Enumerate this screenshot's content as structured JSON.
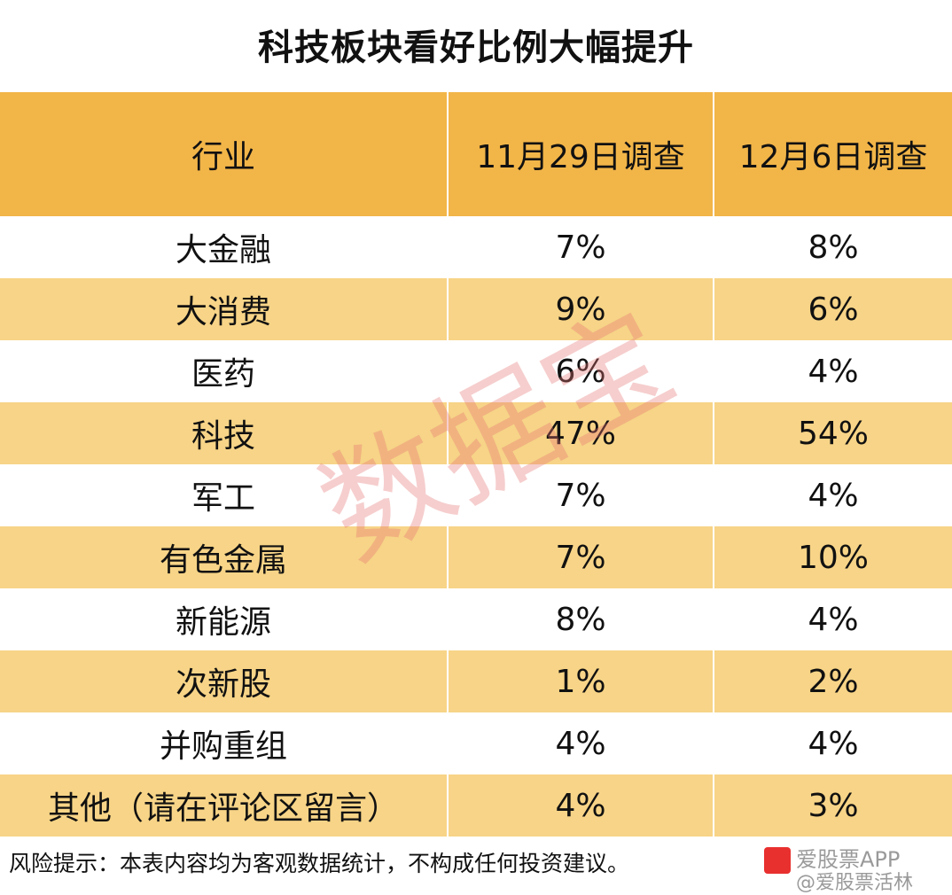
{
  "chart_data": {
    "type": "table",
    "title": "科技板块看好比例大幅提升",
    "columns": [
      "行业",
      "11月29日调查",
      "12月6日调查"
    ],
    "rows": [
      [
        "大金融",
        "7%",
        "8%"
      ],
      [
        "大消费",
        "9%",
        "6%"
      ],
      [
        "医药",
        "6%",
        "4%"
      ],
      [
        "科技",
        "47%",
        "54%"
      ],
      [
        "军工",
        "7%",
        "4%"
      ],
      [
        "有色金属",
        "7%",
        "10%"
      ],
      [
        "新能源",
        "8%",
        "4%"
      ],
      [
        "次新股",
        "1%",
        "2%"
      ],
      [
        "并购重组",
        "4%",
        "4%"
      ],
      [
        "其他（请在评论区留言）",
        "4%",
        "3%"
      ]
    ],
    "header_color": "#f2b548",
    "stripe_color": "#f7d487"
  },
  "footer": {
    "disclaimer": "风险提示：本表内容均为客观数据统计，不构成任何投资建议。"
  },
  "watermark": {
    "text": "数据宝",
    "color": "#e57373"
  },
  "brand": {
    "name": "爱股票APP",
    "handle": "@爱股票活林"
  }
}
